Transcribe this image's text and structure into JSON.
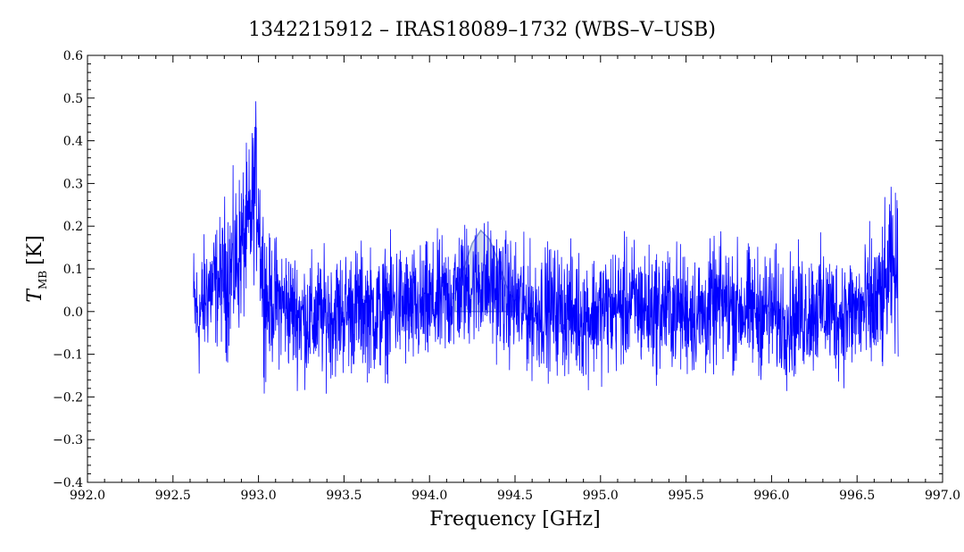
{
  "chart_data": {
    "type": "line",
    "title": "1342215912 – IRAS18089–1732 (WBS–V–USB)",
    "xlabel": "Frequency [GHz]",
    "ylabel_main": "T",
    "ylabel_sub": "MB",
    "ylabel_unit": "[K]",
    "xlim": [
      992.0,
      997.0
    ],
    "ylim": [
      -0.4,
      0.6
    ],
    "x_ticks": [
      "992.0",
      "992.5",
      "993.0",
      "993.5",
      "994.0",
      "994.5",
      "995.0",
      "995.5",
      "996.0",
      "996.5",
      "997.0"
    ],
    "y_ticks": [
      "−0.4",
      "−0.3",
      "−0.2",
      "−0.1",
      "0.0",
      "0.1",
      "0.2",
      "0.3",
      "0.4",
      "0.5",
      "0.6"
    ],
    "grid": false,
    "series": [
      {
        "color": "#0000ff",
        "x": [
          992.62,
          992.65,
          992.7,
          992.75,
          992.8,
          992.85,
          992.9,
          992.95,
          992.98,
          993.0,
          993.02,
          993.05,
          993.1,
          993.2,
          993.3,
          993.4,
          993.5,
          993.6,
          993.7,
          993.8,
          993.9,
          994.0,
          994.1,
          994.2,
          994.3,
          994.4,
          994.5,
          994.6,
          994.7,
          994.8,
          994.9,
          995.0,
          995.1,
          995.2,
          995.3,
          995.4,
          995.5,
          995.6,
          995.7,
          995.8,
          995.9,
          996.0,
          996.1,
          996.2,
          996.3,
          996.4,
          996.5,
          996.6,
          996.65,
          996.7,
          996.74
        ],
        "y": [
          0.02,
          -0.02,
          0.05,
          0.06,
          0.08,
          0.1,
          0.15,
          0.2,
          0.3,
          0.25,
          0.1,
          0.02,
          0.03,
          0.0,
          -0.02,
          -0.01,
          0.0,
          0.01,
          -0.01,
          0.02,
          0.0,
          0.01,
          0.03,
          0.06,
          0.07,
          0.05,
          0.02,
          0.0,
          0.01,
          0.0,
          -0.01,
          0.0,
          0.01,
          0.02,
          0.0,
          0.01,
          0.0,
          -0.01,
          0.02,
          0.01,
          0.0,
          0.0,
          -0.02,
          0.0,
          0.01,
          -0.01,
          0.0,
          0.01,
          0.03,
          0.1,
          0.08
        ]
      },
      {
        "color": "#a9b8e0",
        "x": [
          994.15,
          994.2,
          994.25,
          994.3,
          994.35,
          994.4,
          994.45,
          994.5
        ],
        "y": [
          0.04,
          0.1,
          0.16,
          0.19,
          0.17,
          0.12,
          0.06,
          0.02
        ]
      }
    ]
  }
}
